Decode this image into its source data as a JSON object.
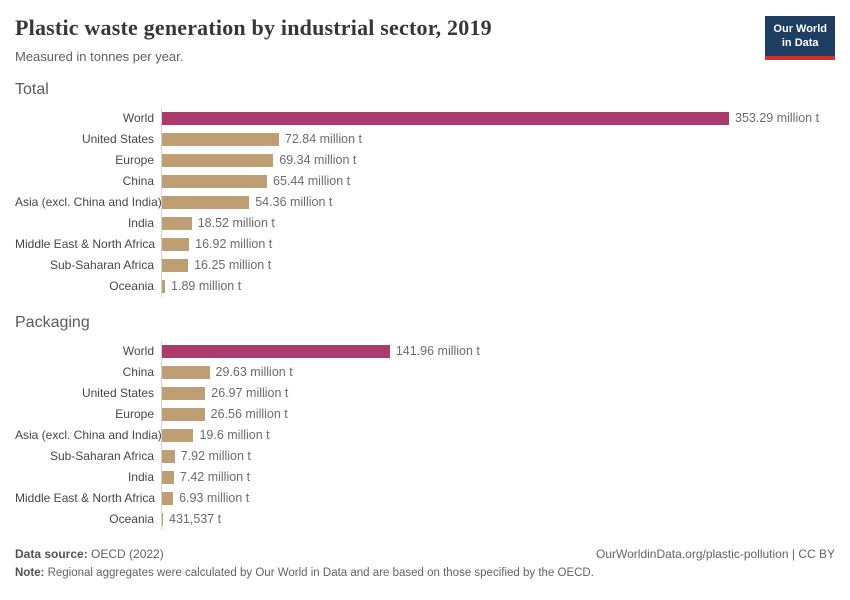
{
  "header": {
    "title": "Plastic waste generation by industrial sector, 2019",
    "subtitle": "Measured in tonnes per year.",
    "logo": {
      "line1": "Our World",
      "line2": "in Data"
    }
  },
  "chart_data": [
    {
      "type": "bar",
      "title": "Total",
      "orientation": "horizontal",
      "unit": "tonnes per year",
      "categories": [
        "World",
        "United States",
        "Europe",
        "China",
        "Asia (excl. China and India)",
        "India",
        "Middle East & North Africa",
        "Sub-Saharan Africa",
        "Oceania"
      ],
      "values": [
        353.29,
        72.84,
        69.34,
        65.44,
        54.36,
        18.52,
        16.92,
        16.25,
        1.89
      ],
      "value_labels": [
        "353.29 million t",
        "72.84 million t",
        "69.34 million t",
        "65.44 million t",
        "54.36 million t",
        "18.52 million t",
        "16.92 million t",
        "16.25 million t",
        "1.89 million t"
      ],
      "highlight_category": "World",
      "colors": {
        "default": "#be9e73",
        "highlight": "#aa3b6c"
      },
      "xlim": [
        0,
        360
      ],
      "grid": false,
      "legend": false
    },
    {
      "type": "bar",
      "title": "Packaging",
      "orientation": "horizontal",
      "unit": "tonnes per year",
      "categories": [
        "World",
        "China",
        "United States",
        "Europe",
        "Asia (excl. China and India)",
        "Sub-Saharan Africa",
        "India",
        "Middle East & North Africa",
        "Oceania"
      ],
      "values": [
        141.96,
        29.63,
        26.97,
        26.56,
        19.6,
        7.92,
        7.42,
        6.93,
        0.431537
      ],
      "value_labels": [
        "141.96 million t",
        "29.63 million t",
        "26.97 million t",
        "26.56 million t",
        "19.6 million t",
        "7.92 million t",
        "7.42 million t",
        "6.93 million t",
        "431,537 t"
      ],
      "highlight_category": "World",
      "colors": {
        "default": "#be9e73",
        "highlight": "#aa3b6c"
      },
      "xlim": [
        0,
        360
      ],
      "grid": false,
      "legend": false
    }
  ],
  "footer": {
    "source_label": "Data source:",
    "source_value": " OECD (2022)",
    "citation": "OurWorldinData.org/plastic-pollution | CC BY",
    "note_label": "Note:",
    "note_value": " Regional aggregates were calculated by Our World in Data and are based on those specified by the OECD."
  }
}
